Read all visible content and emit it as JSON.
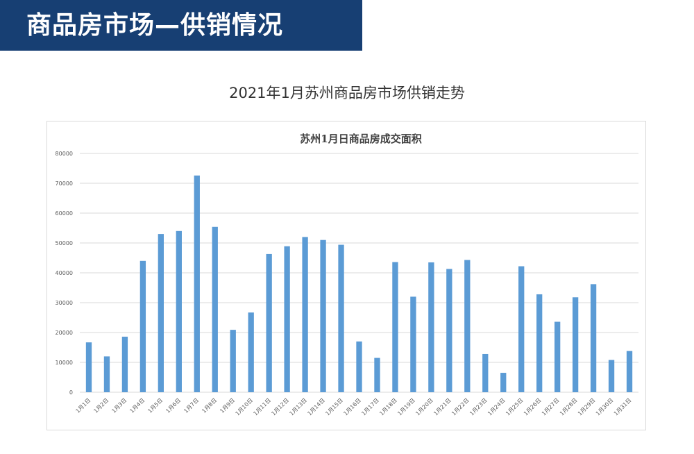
{
  "banner": {
    "title": "商品房市场—供销情况"
  },
  "page_title": "2021年1月苏州商品房市场供销走势",
  "colors": {
    "banner_bg": "#173f73",
    "bar": "#5b9bd5",
    "grid": "#d9d9d9"
  },
  "chart_data": {
    "type": "bar",
    "title": "苏州1月日商品房成交面积",
    "xlabel": "",
    "ylabel": "",
    "ylim": [
      0,
      80000
    ],
    "yticks": [
      "0",
      "10000",
      "20000",
      "30000",
      "40000",
      "50000",
      "60000",
      "70000",
      "80000"
    ],
    "grid": true,
    "legend": "none",
    "categories": [
      "1月1日",
      "1月2日",
      "1月3日",
      "1月4日",
      "1月5日",
      "1月6日",
      "1月7日",
      "1月8日",
      "1月9日",
      "1月10日",
      "1月11日",
      "1月12日",
      "1月13日",
      "1月14日",
      "1月15日",
      "1月16日",
      "1月17日",
      "1月18日",
      "1月19日",
      "1月20日",
      "1月21日",
      "1月22日",
      "1月23日",
      "1月24日",
      "1月25日",
      "1月26日",
      "1月27日",
      "1月28日",
      "1月29日",
      "1月30日",
      "1月31日"
    ],
    "values": [
      16700,
      12000,
      18600,
      44000,
      53000,
      54000,
      72600,
      55400,
      20900,
      26700,
      46300,
      48900,
      52000,
      51000,
      49400,
      17000,
      11500,
      43600,
      32000,
      43500,
      41300,
      44300,
      12800,
      6500,
      42200,
      32800,
      23600,
      31800,
      36200,
      10800,
      13800
    ]
  }
}
